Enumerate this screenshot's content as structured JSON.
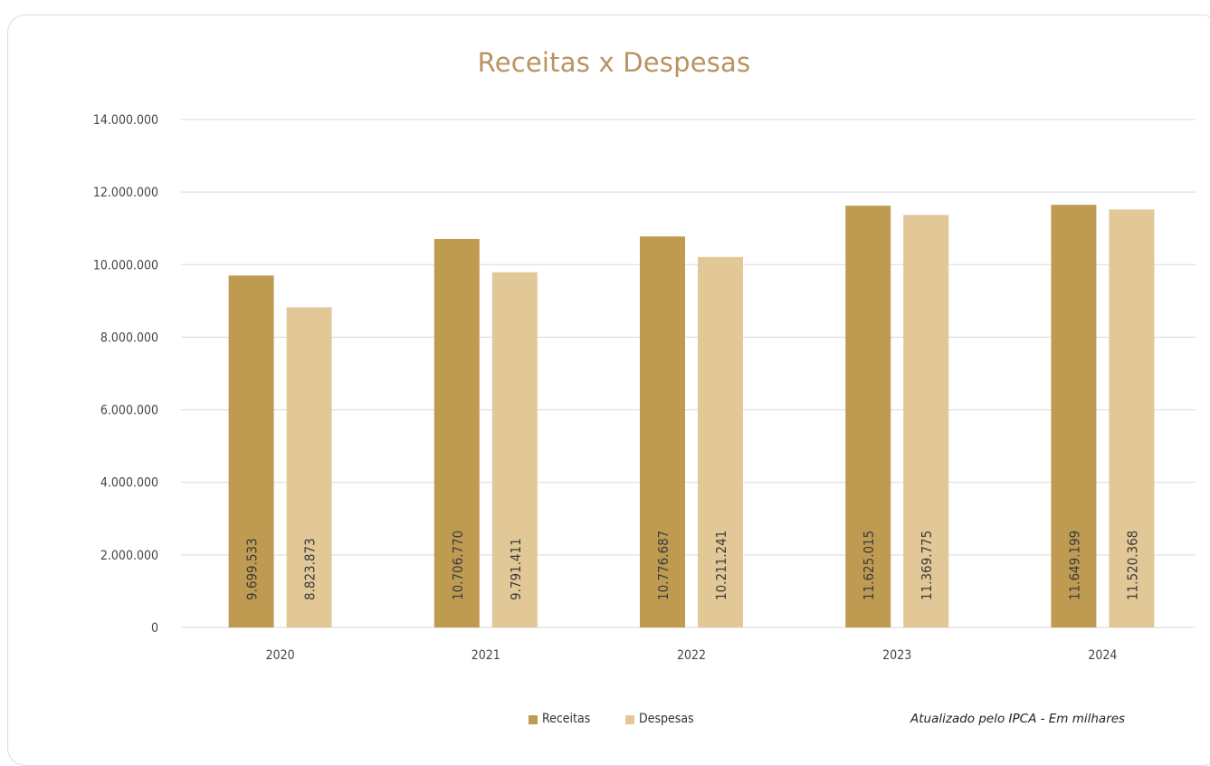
{
  "chart_data": {
    "type": "bar",
    "title": "Receitas x Despesas",
    "categories": [
      "2020",
      "2021",
      "2022",
      "2023",
      "2024"
    ],
    "series": [
      {
        "name": "Receitas",
        "color": "#bf9b52",
        "values": [
          9699533,
          10706770,
          10776687,
          11625015,
          11649199
        ],
        "labels": [
          "9.699.533",
          "10.706.770",
          "10.776.687",
          "11.625.015",
          "11.649.199"
        ]
      },
      {
        "name": "Despesas",
        "color": "#e2c797",
        "values": [
          8823873,
          9791411,
          10211241,
          11369775,
          11520368
        ],
        "labels": [
          "8.823.873",
          "9.791.411",
          "10.211.241",
          "11.369.775",
          "11.520.368"
        ]
      }
    ],
    "ylim": [
      0,
      14000000
    ],
    "yticks": [
      0,
      2000000,
      4000000,
      6000000,
      8000000,
      10000000,
      12000000,
      14000000
    ],
    "ytick_labels": [
      "0",
      "2.000.000",
      "4.000.000",
      "6.000.000",
      "8.000.000",
      "10.000.000",
      "12.000.000",
      "14.000.000"
    ],
    "grid": true,
    "legend": "bottom",
    "annotation": "Atualizado pelo IPCA - Em milhares"
  }
}
